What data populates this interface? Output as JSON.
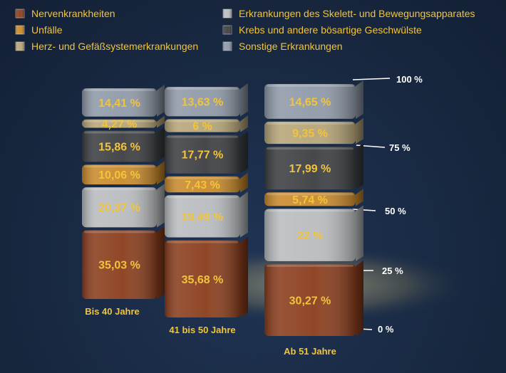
{
  "chart_data": {
    "type": "bar",
    "stacked": true,
    "normalized": true,
    "categories": [
      "Bis 40 Jahre",
      "41 bis 50 Jahre",
      "Ab 51 Jahre"
    ],
    "series": [
      {
        "name": "Nervenkrankheiten",
        "color": "#8a3d1c",
        "values": [
          35.03,
          35.68,
          30.27
        ],
        "labels": [
          "35,03 %",
          "35,68 %",
          "30,27 %"
        ]
      },
      {
        "name": "Erkrankungen des Skelett- und Bewegungsapparates",
        "color": "#b9bcbf",
        "values": [
          20.37,
          19.49,
          22
        ],
        "labels": [
          "20,37 %",
          "19,49 %",
          "22 %"
        ]
      },
      {
        "name": "Unfälle",
        "color": "#c98a2c",
        "values": [
          10.06,
          7.43,
          5.74
        ],
        "labels": [
          "10,06 %",
          "7,43 %",
          "5,74 %"
        ]
      },
      {
        "name": "Krebs und andere bösartige Geschwülste",
        "color": "#3c3e42",
        "values": [
          15.86,
          17.77,
          17.99
        ],
        "labels": [
          "15,86 %",
          "17,77 %",
          "17,99 %"
        ]
      },
      {
        "name": "Herz- und Gefäßsystemerkrankungen",
        "color": "#b6a578",
        "values": [
          4.27,
          6,
          9.35
        ],
        "labels": [
          "4,27 %",
          "6 %",
          "9,35 %"
        ]
      },
      {
        "name": "Sonstige Erkrankungen",
        "color": "#8f9aa8",
        "values": [
          14.41,
          13.63,
          14.65
        ],
        "labels": [
          "14,41 %",
          "13,63 %",
          "14,65 %"
        ]
      }
    ],
    "legend": {
      "placement": "top",
      "left_column": [
        "Nervenkrankheiten",
        "Unfälle",
        "Herz- und Gefäßsystemerkrankungen"
      ],
      "right_column": [
        "Erkrankungen des Skelett- und Bewegungsapparates",
        "Krebs und andere bösartige Geschwülste",
        "Sonstige Erkrankungen"
      ]
    },
    "y_ticks": [
      {
        "value": 0,
        "label": "0 %"
      },
      {
        "value": 25,
        "label": "25 %"
      },
      {
        "value": 50,
        "label": "50 %"
      },
      {
        "value": 75,
        "label": "75 %"
      },
      {
        "value": 100,
        "label": "100 %"
      }
    ],
    "ylim": [
      0,
      100
    ]
  }
}
